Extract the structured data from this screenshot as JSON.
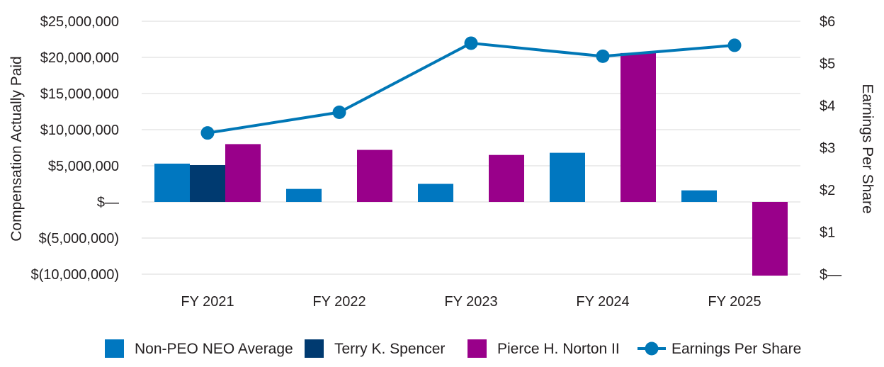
{
  "chart_data": {
    "type": "bar",
    "categories": [
      "FY 2021",
      "FY 2022",
      "FY 2023",
      "FY 2024",
      "FY 2025"
    ],
    "series": [
      {
        "name": "Non-PEO NEO Average",
        "kind": "bar",
        "axis": "left",
        "color": "#0077c0",
        "values": [
          5300000,
          1800000,
          2500000,
          6800000,
          1600000
        ]
      },
      {
        "name": "Terry K. Spencer",
        "kind": "bar",
        "axis": "left",
        "color": "#003a70",
        "values": [
          5100000,
          null,
          null,
          null,
          null
        ]
      },
      {
        "name": "Pierce H. Norton II",
        "kind": "bar",
        "axis": "left",
        "color": "#99008a",
        "values": [
          8000000,
          7200000,
          6500000,
          20600000,
          -10200000
        ]
      },
      {
        "name": "Earnings Per Share",
        "kind": "line",
        "axis": "right",
        "color": "#0077b6",
        "values": [
          3.35,
          3.84,
          5.48,
          5.17,
          5.43
        ]
      }
    ],
    "ylabel": "Compensation Actually Paid",
    "y2label": "Earnings Per Share",
    "ylim": [
      -10000000,
      25000000
    ],
    "y2lim": [
      0,
      6
    ],
    "yticks": [
      "$25,000,000",
      "$20,000,000",
      "$15,000,000",
      "$10,000,000",
      "$5,000,000",
      "$—",
      "$(5,000,000)",
      "$(10,000,000)"
    ],
    "y2ticks": [
      "$6",
      "$5",
      "$4",
      "$3",
      "$2",
      "$1",
      "$—"
    ],
    "grid": true,
    "legend": "bottom"
  }
}
